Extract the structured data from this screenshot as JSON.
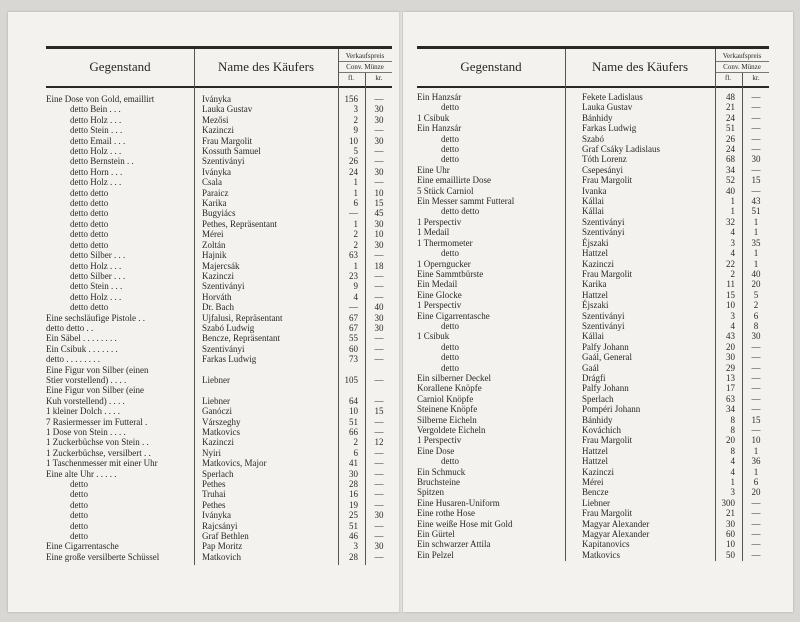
{
  "header": {
    "item": "Gegenstand",
    "buyer": "Name des Käufers",
    "price": "Verkaufspreis",
    "currency": "Conv. Münze",
    "fl": "fl.",
    "kr": "kr."
  },
  "pages": [
    {
      "rows": [
        {
          "item": "Eine Dose von Gold, emaillirt",
          "buyer": "Iványka",
          "fl": "156",
          "kr": "—"
        },
        {
          "item": "detto      Bein  . . .",
          "buyer": "Lauka Gustav",
          "fl": "3",
          "kr": "30"
        },
        {
          "item": "detto      Holz  . . .",
          "buyer": "Mezősi",
          "fl": "2",
          "kr": "30"
        },
        {
          "item": "detto      Stein . . .",
          "buyer": "Kazinczi",
          "fl": "9",
          "kr": "—"
        },
        {
          "item": "detto      Email . . .",
          "buyer": "Frau Margolit",
          "fl": "10",
          "kr": "30"
        },
        {
          "item": "detto      Holz  . . .",
          "buyer": "Kossuth Samuel",
          "fl": "5",
          "kr": "—"
        },
        {
          "item": "detto      Bernstein . .",
          "buyer": "Szentiványi",
          "fl": "26",
          "kr": "—"
        },
        {
          "item": "detto      Horn  . . .",
          "buyer": "Iványka",
          "fl": "24",
          "kr": "30"
        },
        {
          "item": "detto      Holz  . . .",
          "buyer": "Csala",
          "fl": "1",
          "kr": "—"
        },
        {
          "item": "detto      detto",
          "buyer": "Paraicz",
          "fl": "1",
          "kr": "10"
        },
        {
          "item": "detto      detto",
          "buyer": "Karika",
          "fl": "6",
          "kr": "15"
        },
        {
          "item": "detto      detto",
          "buyer": "Bugyiács",
          "fl": "—",
          "kr": "45"
        },
        {
          "item": "detto      detto",
          "buyer": "Pethes, Repräsentant",
          "fl": "1",
          "kr": "30"
        },
        {
          "item": "detto      detto",
          "buyer": "Mérei",
          "fl": "2",
          "kr": "10"
        },
        {
          "item": "detto      detto",
          "buyer": "Zoltán",
          "fl": "2",
          "kr": "30"
        },
        {
          "item": "detto      Silber . . .",
          "buyer": "Hajnik",
          "fl": "63",
          "kr": "—"
        },
        {
          "item": "detto      Holz  . . .",
          "buyer": "Majercsák",
          "fl": "1",
          "kr": "18"
        },
        {
          "item": "detto      Silber . . .",
          "buyer": "Kazinczi",
          "fl": "23",
          "kr": "—"
        },
        {
          "item": "detto      Stein . . .",
          "buyer": "Szentiványi",
          "fl": "9",
          "kr": "—"
        },
        {
          "item": "detto      Holz  . . .",
          "buyer": "Horváth",
          "fl": "4",
          "kr": "—"
        },
        {
          "item": "detto      detto",
          "buyer": "Dr. Bach",
          "fl": "—",
          "kr": "40"
        },
        {
          "item": "Eine sechsläufige Pistole . .",
          "buyer": "Ujfalusi, Repräsentant",
          "fl": "67",
          "kr": "30"
        },
        {
          "item": "  detto      detto . .",
          "buyer": "Szabó Ludwig",
          "fl": "67",
          "kr": "30"
        },
        {
          "item": "Ein Säbel . . . . . . . .",
          "buyer": "Bencze, Repräsentant",
          "fl": "55",
          "kr": "—"
        },
        {
          "item": "Ein Csibuk . . . . . . .",
          "buyer": "Szentiványi",
          "fl": "60",
          "kr": "—"
        },
        {
          "item": "  detto . . . . . . . .",
          "buyer": "Farkas Ludwig",
          "fl": "73",
          "kr": "—"
        },
        {
          "item": "Eine Figur von Silber (einen\n  Stier vorstellend) . . . .",
          "buyer": "Liebner",
          "fl": "105",
          "kr": "—"
        },
        {
          "item": "Eine Figur von Silber (eine\n  Kuh vorstellend) . . . .",
          "buyer": "Liebner",
          "fl": "64",
          "kr": "—"
        },
        {
          "item": "1 kleiner Dolch . . . .",
          "buyer": "Ganóczi",
          "fl": "10",
          "kr": "15"
        },
        {
          "item": "7 Rasiermesser im Futteral .",
          "buyer": "Várszeghy",
          "fl": "51",
          "kr": "—"
        },
        {
          "item": "1 Dose von Stein . . . .",
          "buyer": "Matkovics",
          "fl": "66",
          "kr": "—"
        },
        {
          "item": "1 Zuckerbüchse von Stein . .",
          "buyer": "Kazinczi",
          "fl": "2",
          "kr": "12"
        },
        {
          "item": "1 Zuckerbüchse, versilbert . .",
          "buyer": "Nyiri",
          "fl": "6",
          "kr": "—"
        },
        {
          "item": "1 Taschenmesser mit einer Uhr",
          "buyer": "Matkovics, Major",
          "fl": "41",
          "kr": "—"
        },
        {
          "item": "Eine alte Uhr . . . . .",
          "buyer": "Sperlach",
          "fl": "30",
          "kr": "—"
        },
        {
          "item": "detto",
          "buyer": "Pethes",
          "fl": "28",
          "kr": "—"
        },
        {
          "item": "detto",
          "buyer": "Truhai",
          "fl": "16",
          "kr": "—"
        },
        {
          "item": "detto",
          "buyer": "Pethes",
          "fl": "19",
          "kr": "—"
        },
        {
          "item": "detto",
          "buyer": "Iványka",
          "fl": "25",
          "kr": "30"
        },
        {
          "item": "detto",
          "buyer": "Rajcsányi",
          "fl": "51",
          "kr": "—"
        },
        {
          "item": "detto",
          "buyer": "Graf Bethlen",
          "fl": "46",
          "kr": "—"
        },
        {
          "item": "Eine Cigarrentasche",
          "buyer": "Pap Moritz",
          "fl": "3",
          "kr": "30"
        },
        {
          "item": "Eine große versilberte Schüssel",
          "buyer": "Matkovich",
          "fl": "28",
          "kr": "—"
        }
      ]
    },
    {
      "rows": [
        {
          "item": "Ein Hanzsár",
          "buyer": "Fekete Ladislaus",
          "fl": "48",
          "kr": "—"
        },
        {
          "item": "detto",
          "buyer": "Lauka Gustav",
          "fl": "21",
          "kr": "—"
        },
        {
          "item": "1 Csibuk",
          "buyer": "Bánhidy",
          "fl": "24",
          "kr": "—"
        },
        {
          "item": "Ein Hanzsár",
          "buyer": "Farkas Ludwig",
          "fl": "51",
          "kr": "—"
        },
        {
          "item": "detto",
          "buyer": "Szabó",
          "fl": "26",
          "kr": "—"
        },
        {
          "item": "detto",
          "buyer": "Graf Csáky Ladislaus",
          "fl": "24",
          "kr": "—"
        },
        {
          "item": "detto",
          "buyer": "Tóth Lorenz",
          "fl": "68",
          "kr": "30"
        },
        {
          "item": "Eine Uhr",
          "buyer": "Csepesányi",
          "fl": "34",
          "kr": "—"
        },
        {
          "item": "Eine emaillirte Dose",
          "buyer": "Frau Margolit",
          "fl": "52",
          "kr": "15"
        },
        {
          "item": "5 Stück Carniol",
          "buyer": "Ivanka",
          "fl": "40",
          "kr": "—"
        },
        {
          "item": "Ein Messer sammt Futteral",
          "buyer": "Kállai",
          "fl": "1",
          "kr": "43"
        },
        {
          "item": "detto      detto",
          "buyer": "Kállai",
          "fl": "1",
          "kr": "51"
        },
        {
          "item": "1 Perspectiv",
          "buyer": "Szentiványi",
          "fl": "32",
          "kr": "1"
        },
        {
          "item": "1 Medail",
          "buyer": "Szentiványi",
          "fl": "4",
          "kr": "1"
        },
        {
          "item": "1 Thermometer",
          "buyer": "Éjszaki",
          "fl": "3",
          "kr": "35"
        },
        {
          "item": "detto",
          "buyer": "Hattzel",
          "fl": "4",
          "kr": "1"
        },
        {
          "item": "1 Operngucker",
          "buyer": "Kazinczi",
          "fl": "22",
          "kr": "1"
        },
        {
          "item": "Eine Sammtbürste",
          "buyer": "Frau Margolit",
          "fl": "2",
          "kr": "40"
        },
        {
          "item": "Ein Medail",
          "buyer": "Karika",
          "fl": "11",
          "kr": "20"
        },
        {
          "item": "Eine Glocke",
          "buyer": "Hattzel",
          "fl": "15",
          "kr": "5"
        },
        {
          "item": "1 Perspectiv",
          "buyer": "Éjszaki",
          "fl": "10",
          "kr": "2"
        },
        {
          "item": "Eine Cigarrentasche",
          "buyer": "Szentiványi",
          "fl": "3",
          "kr": "6"
        },
        {
          "item": "detto",
          "buyer": "Szentiványi",
          "fl": "4",
          "kr": "8"
        },
        {
          "item": "1 Csibuk",
          "buyer": "Kállai",
          "fl": "43",
          "kr": "30"
        },
        {
          "item": "detto",
          "buyer": "Palfy Johann",
          "fl": "20",
          "kr": "—"
        },
        {
          "item": "detto",
          "buyer": "Gaál, General",
          "fl": "30",
          "kr": "—"
        },
        {
          "item": "detto",
          "buyer": "Gaál",
          "fl": "29",
          "kr": "—"
        },
        {
          "item": "Ein silberner Deckel",
          "buyer": "Drágfi",
          "fl": "13",
          "kr": "—"
        },
        {
          "item": "Korallene Knöpfe",
          "buyer": "Palfy Johann",
          "fl": "17",
          "kr": "—"
        },
        {
          "item": "Carniol Knöpfe",
          "buyer": "Sperlach",
          "fl": "63",
          "kr": "—"
        },
        {
          "item": "Steinene Knöpfe",
          "buyer": "Pompéri Johann",
          "fl": "34",
          "kr": "—"
        },
        {
          "item": "Silberne Eicheln",
          "buyer": "Bánhidy",
          "fl": "8",
          "kr": "15"
        },
        {
          "item": "Vergoldete Eicheln",
          "buyer": "Kováchich",
          "fl": "8",
          "kr": "—"
        },
        {
          "item": "1 Perspectiv",
          "buyer": "Frau Margolit",
          "fl": "20",
          "kr": "10"
        },
        {
          "item": "Eine Dose",
          "buyer": "Hattzel",
          "fl": "8",
          "kr": "1"
        },
        {
          "item": "detto",
          "buyer": "Hattzel",
          "fl": "4",
          "kr": "36"
        },
        {
          "item": "Ein Schmuck",
          "buyer": "Kazinczi",
          "fl": "4",
          "kr": "1"
        },
        {
          "item": "Bruchsteine",
          "buyer": "Mérei",
          "fl": "1",
          "kr": "6"
        },
        {
          "item": "Spitzen",
          "buyer": "Bencze",
          "fl": "3",
          "kr": "20"
        },
        {
          "item": "Eine Husaren-Uniform",
          "buyer": "Liebner",
          "fl": "300",
          "kr": "—"
        },
        {
          "item": "Eine rothe Hose",
          "buyer": "Frau Margolit",
          "fl": "21",
          "kr": "—"
        },
        {
          "item": "Eine weiße Hose mit Gold",
          "buyer": "Magyar Alexander",
          "fl": "30",
          "kr": "—"
        },
        {
          "item": "Ein Gürtel",
          "buyer": "Magyar Alexander",
          "fl": "60",
          "kr": "—"
        },
        {
          "item": "Ein schwarzer Attila",
          "buyer": "Kapitanovics",
          "fl": "10",
          "kr": "—"
        },
        {
          "item": "Ein Pelzel",
          "buyer": "Matkovics",
          "fl": "50",
          "kr": "—"
        }
      ]
    }
  ]
}
